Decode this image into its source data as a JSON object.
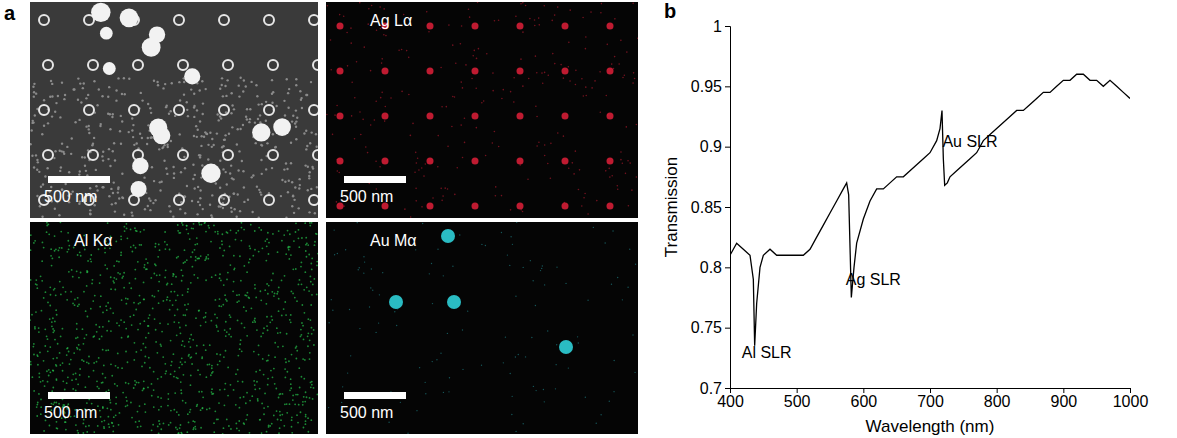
{
  "figure": {
    "panel_labels": [
      "a",
      "b"
    ]
  },
  "panel_a": {
    "maps": [
      {
        "label": "",
        "scale_bar": "500 nm",
        "color": "#c8c8c8"
      },
      {
        "label": "Ag Lα",
        "scale_bar": "500 nm",
        "color": "#e0203a"
      },
      {
        "label": "Al Kα",
        "scale_bar": "500 nm",
        "color": "#27c24c"
      },
      {
        "label": "Au Mα",
        "scale_bar": "500 nm",
        "color": "#2fd0d8"
      }
    ]
  },
  "chart_data": {
    "type": "line",
    "x_label": "Wavelength (nm)",
    "y_label": "Transmission",
    "color": "#000000",
    "x": [
      400,
      410,
      420,
      430,
      435,
      437,
      440,
      445,
      450,
      460,
      470,
      480,
      490,
      500,
      510,
      520,
      530,
      540,
      550,
      560,
      570,
      575,
      578,
      582,
      586,
      590,
      600,
      610,
      620,
      630,
      640,
      650,
      660,
      670,
      680,
      690,
      700,
      710,
      715,
      718,
      720,
      722,
      726,
      730,
      740,
      750,
      760,
      770,
      780,
      790,
      800,
      810,
      820,
      830,
      840,
      850,
      860,
      870,
      880,
      890,
      900,
      910,
      920,
      930,
      940,
      950,
      960,
      970,
      980,
      990,
      1000
    ],
    "values": [
      0.81,
      0.82,
      0.815,
      0.81,
      0.79,
      0.735,
      0.77,
      0.8,
      0.81,
      0.815,
      0.81,
      0.81,
      0.81,
      0.81,
      0.81,
      0.815,
      0.825,
      0.835,
      0.845,
      0.855,
      0.865,
      0.87,
      0.86,
      0.775,
      0.8,
      0.82,
      0.84,
      0.855,
      0.865,
      0.865,
      0.87,
      0.875,
      0.875,
      0.88,
      0.885,
      0.89,
      0.895,
      0.905,
      0.915,
      0.93,
      0.89,
      0.868,
      0.87,
      0.875,
      0.88,
      0.885,
      0.89,
      0.895,
      0.905,
      0.91,
      0.915,
      0.92,
      0.925,
      0.93,
      0.93,
      0.935,
      0.94,
      0.945,
      0.945,
      0.95,
      0.955,
      0.955,
      0.96,
      0.96,
      0.955,
      0.955,
      0.95,
      0.955,
      0.95,
      0.945,
      0.94
    ],
    "xlim": [
      400,
      1000
    ],
    "ylim": [
      0.7,
      1
    ],
    "xticks": [
      400,
      500,
      600,
      700,
      800,
      900,
      1000
    ],
    "yticks": [
      0.7,
      0.75,
      0.8,
      0.85,
      0.9,
      0.95,
      1
    ],
    "annotations": [
      {
        "text": "Al SLR",
        "x": 455,
        "y": 0.725
      },
      {
        "text": "Ag SLR",
        "x": 615,
        "y": 0.785
      },
      {
        "text": "Au SLR",
        "x": 760,
        "y": 0.9
      }
    ]
  }
}
